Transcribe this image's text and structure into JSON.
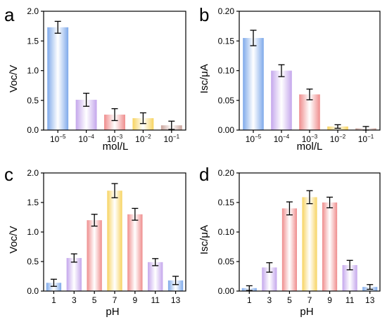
{
  "colors": {
    "blue": "#7ea9ea",
    "purple": "#c4a6ec",
    "red": "#ef8c8c",
    "yellow": "#f7d35f",
    "brown": "#c9a39b"
  },
  "chart_data": [
    {
      "id": "a",
      "panel_letter": "a",
      "type": "bar",
      "ylabel": "Voc/V",
      "xlabel": "mol/L",
      "ylim": [
        0,
        2.0
      ],
      "yticks": [
        0.0,
        0.5,
        1.0,
        1.5,
        2.0
      ],
      "ytick_labels": [
        "0.0",
        "0.5",
        "1.0",
        "1.5",
        "2.0"
      ],
      "categories": [
        {
          "base": "10",
          "exp": "−5"
        },
        {
          "base": "10",
          "exp": "−4"
        },
        {
          "base": "10",
          "exp": "−3"
        },
        {
          "base": "10",
          "exp": "−2"
        },
        {
          "base": "10",
          "exp": "−1"
        }
      ],
      "values": [
        1.73,
        0.51,
        0.26,
        0.2,
        0.08
      ],
      "errors": [
        0.1,
        0.11,
        0.1,
        0.09,
        0.07
      ],
      "colors": [
        "blue",
        "purple",
        "red",
        "yellow",
        "brown"
      ]
    },
    {
      "id": "b",
      "panel_letter": "b",
      "type": "bar",
      "ylabel": "Isc/μA",
      "xlabel": "mol/L",
      "ylim": [
        0,
        0.2
      ],
      "yticks": [
        0.0,
        0.05,
        0.1,
        0.15,
        0.2
      ],
      "ytick_labels": [
        "0.00",
        "0.05",
        "0.10",
        "0.15",
        "0.20"
      ],
      "categories": [
        {
          "base": "10",
          "exp": "−5"
        },
        {
          "base": "10",
          "exp": "−4"
        },
        {
          "base": "10",
          "exp": "−3"
        },
        {
          "base": "10",
          "exp": "−2"
        },
        {
          "base": "10",
          "exp": "−1"
        }
      ],
      "values": [
        0.155,
        0.1,
        0.06,
        0.006,
        0.003
      ],
      "errors": [
        0.013,
        0.01,
        0.009,
        0.003,
        0.003
      ],
      "colors": [
        "blue",
        "purple",
        "red",
        "yellow",
        "brown"
      ]
    },
    {
      "id": "c",
      "panel_letter": "c",
      "type": "bar",
      "ylabel": "Voc/V",
      "xlabel": "pH",
      "ylim": [
        0,
        2.0
      ],
      "yticks": [
        0.0,
        0.5,
        1.0,
        1.5,
        2.0
      ],
      "ytick_labels": [
        "0.0",
        "0.5",
        "1.0",
        "1.5",
        "2.0"
      ],
      "categories": [
        "1",
        "3",
        "5",
        "7",
        "9",
        "11",
        "13"
      ],
      "values": [
        0.14,
        0.56,
        1.2,
        1.7,
        1.3,
        0.49,
        0.18
      ],
      "errors": [
        0.06,
        0.07,
        0.1,
        0.12,
        0.1,
        0.06,
        0.07
      ],
      "colors": [
        "blue",
        "purple",
        "red",
        "yellow",
        "red",
        "purple",
        "blue"
      ]
    },
    {
      "id": "d",
      "panel_letter": "d",
      "type": "bar",
      "ylabel": "Isc/μA",
      "xlabel": "pH",
      "ylim": [
        0,
        0.2
      ],
      "yticks": [
        0.0,
        0.05,
        0.1,
        0.15,
        0.2
      ],
      "ytick_labels": [
        "0.00",
        "0.05",
        "0.10",
        "0.15",
        "0.20"
      ],
      "categories": [
        "1",
        "3",
        "5",
        "7",
        "9",
        "11",
        "13"
      ],
      "values": [
        0.005,
        0.04,
        0.14,
        0.159,
        0.15,
        0.044,
        0.007
      ],
      "errors": [
        0.004,
        0.008,
        0.011,
        0.011,
        0.009,
        0.008,
        0.004
      ],
      "colors": [
        "blue",
        "purple",
        "red",
        "yellow",
        "red",
        "purple",
        "blue"
      ]
    }
  ]
}
